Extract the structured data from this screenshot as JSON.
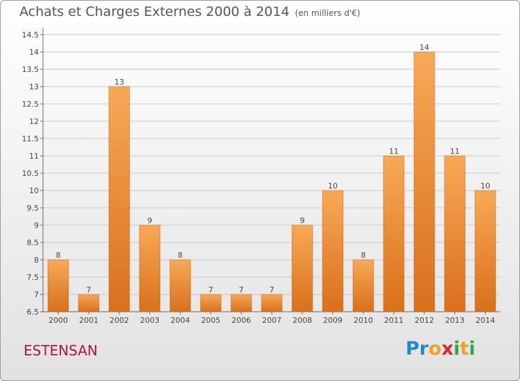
{
  "header": {
    "title": "Achats et Charges Externes 2000 à 2014",
    "subtitle": "(en milliers d'€)"
  },
  "footer": {
    "commune": "ESTENSAN",
    "logo_letters": [
      {
        "char": "P",
        "color": "#1e88c8"
      },
      {
        "char": "r",
        "color": "#1e88c8"
      },
      {
        "char": "o",
        "color": "#f0a020"
      },
      {
        "char": "x",
        "color": "#e0262d"
      },
      {
        "char": "i",
        "color": "#2aa84a"
      },
      {
        "char": "t",
        "color": "#f0a020"
      },
      {
        "char": "i",
        "color": "#2aa84a"
      }
    ]
  },
  "colors": {
    "bar_top": "#f7a957",
    "bar_bottom": "#d9701c",
    "grid": "#c8c8c8"
  },
  "chart_data": {
    "type": "bar",
    "title": "Achats et Charges Externes 2000 à 2014",
    "subtitle": "(en milliers d'€)",
    "categories": [
      "2000",
      "2001",
      "2002",
      "2003",
      "2004",
      "2005",
      "2006",
      "2007",
      "2008",
      "2009",
      "2010",
      "2011",
      "2012",
      "2013",
      "2014"
    ],
    "values": [
      8,
      7,
      13,
      9,
      8,
      7,
      7,
      7,
      9,
      10,
      8,
      11,
      14,
      11,
      10
    ],
    "ylim": [
      6.5,
      14.5
    ],
    "yticks": [
      "6.5",
      "7",
      "7.5",
      "8",
      "8.5",
      "9",
      "9.5",
      "10",
      "10.5",
      "11",
      "11.5",
      "12",
      "12.5",
      "13",
      "13.5",
      "14",
      "14.5"
    ],
    "grid": true,
    "xlabel": "",
    "ylabel": ""
  }
}
